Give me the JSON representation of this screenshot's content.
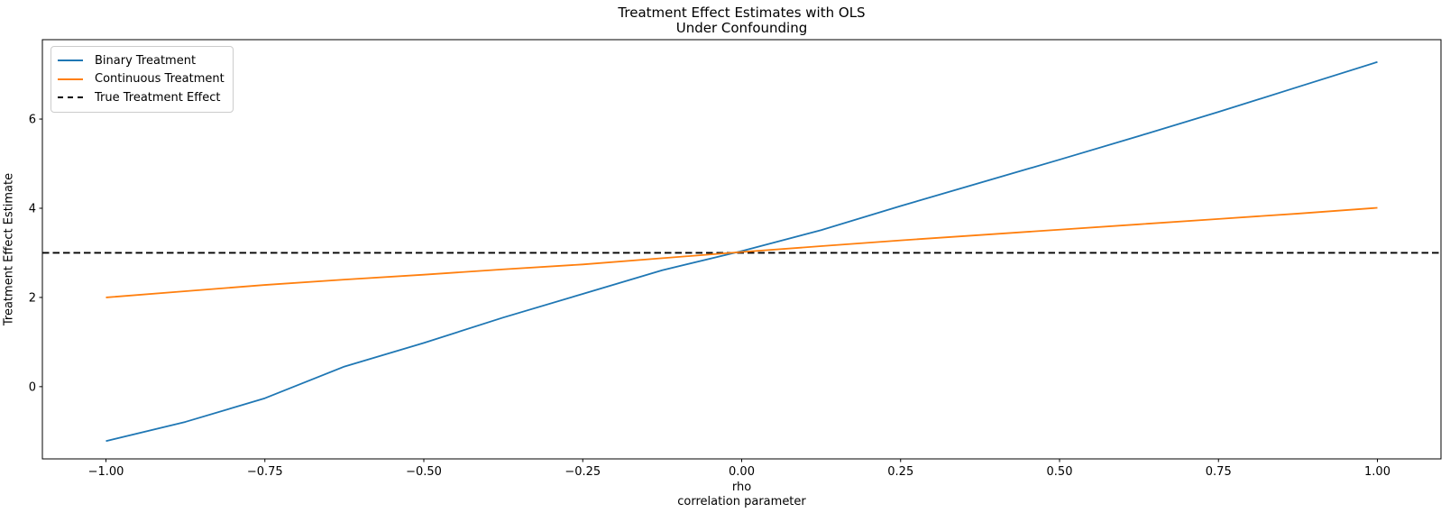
{
  "chart_data": {
    "type": "line",
    "title_lines": [
      "Treatment Effect Estimates with OLS",
      "Under Confounding"
    ],
    "xlabel_lines": [
      "rho",
      "correlation parameter"
    ],
    "ylabel": "Treatment Effect Estimate",
    "x": [
      -1.0,
      -0.875,
      -0.75,
      -0.625,
      -0.5,
      -0.375,
      -0.25,
      -0.125,
      0.0,
      0.125,
      0.25,
      0.375,
      0.5,
      0.625,
      0.75,
      0.875,
      1.0
    ],
    "series": [
      {
        "name": "Binary Treatment",
        "color": "#1f77b4",
        "style": "solid",
        "values": [
          -1.22,
          -0.79,
          -0.26,
          0.45,
          0.98,
          1.55,
          2.08,
          2.61,
          3.04,
          3.51,
          4.05,
          4.57,
          5.09,
          5.62,
          6.16,
          6.72,
          7.28
        ]
      },
      {
        "name": "Continuous Treatment",
        "color": "#ff7f0e",
        "style": "solid",
        "values": [
          2.0,
          2.14,
          2.28,
          2.4,
          2.51,
          2.63,
          2.74,
          2.88,
          3.02,
          3.15,
          3.28,
          3.4,
          3.52,
          3.64,
          3.76,
          3.88,
          4.01
        ]
      },
      {
        "name": "True Treatment Effect",
        "color": "#000000",
        "style": "dashed",
        "constant": 3.0
      }
    ],
    "xlim": [
      -1.1,
      1.1
    ],
    "ylim": [
      -1.62,
      7.78
    ],
    "x_ticks": [
      -1.0,
      -0.75,
      -0.5,
      -0.25,
      0.0,
      0.25,
      0.5,
      0.75,
      1.0
    ],
    "x_tick_labels": [
      "−1.00",
      "−0.75",
      "−0.50",
      "−0.25",
      "0.00",
      "0.25",
      "0.50",
      "0.75",
      "1.00"
    ],
    "y_ticks": [
      0,
      2,
      4,
      6
    ],
    "y_tick_labels": [
      "0",
      "2",
      "4",
      "6"
    ],
    "grid": false,
    "legend_position": "upper-left",
    "colors": {
      "background": "#ffffff",
      "axis": "#000000",
      "legend_border": "#cccccc",
      "text": "#000000"
    }
  }
}
